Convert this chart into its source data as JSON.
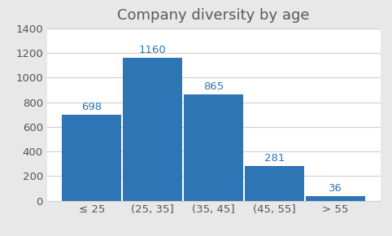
{
  "title": "Company diversity by age",
  "categories": [
    "≤ 25",
    "(25, 35]",
    "(35, 45]",
    "(45, 55]",
    "> 55"
  ],
  "values": [
    698,
    1160,
    865,
    281,
    36
  ],
  "bar_color": "#2e75b6",
  "ylim": [
    0,
    1400
  ],
  "yticks": [
    0,
    200,
    400,
    600,
    800,
    1000,
    1200,
    1400
  ],
  "figure_bg": "#e8e8e8",
  "plot_bg": "#ffffff",
  "title_fontsize": 13,
  "tick_fontsize": 9.5,
  "annotation_color": "#2e75b6",
  "annotation_fontsize": 9.5,
  "bar_width": 0.97,
  "grid_color": "#d0d0d0",
  "tick_color": "#555555",
  "title_color": "#595959"
}
